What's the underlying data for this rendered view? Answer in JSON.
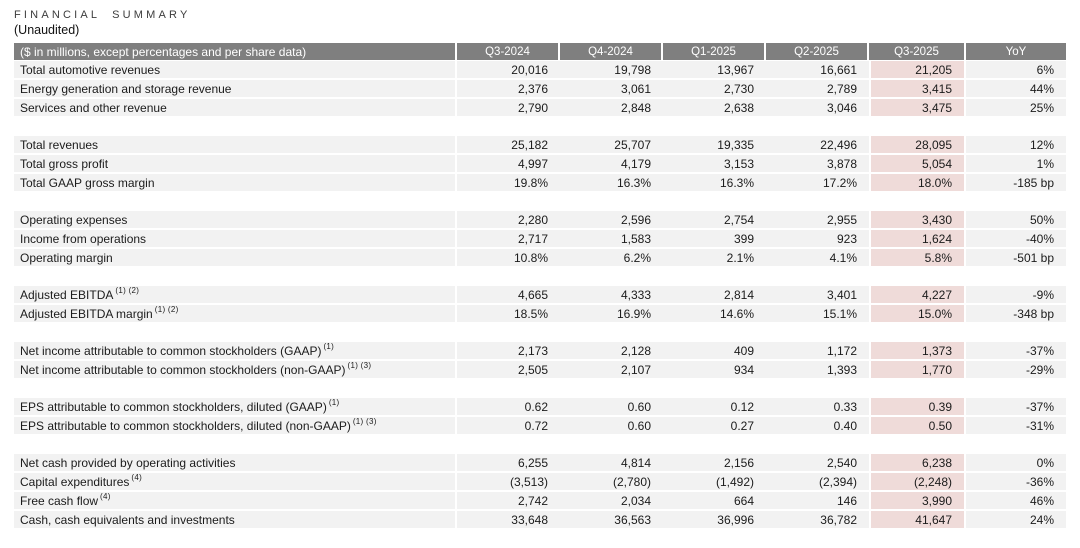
{
  "title": "FINANCIAL SUMMARY",
  "subtitle": "(Unaudited)",
  "colors": {
    "header_bg": "#7f7f7f",
    "header_text": "#ffffff",
    "row_bg": "#f2f2f2",
    "highlight_bg": "#efdbd9",
    "text": "#1b1b1b"
  },
  "table": {
    "label_header": "($ in millions, except percentages and per share data)",
    "columns": [
      "Q3-2024",
      "Q4-2024",
      "Q1-2025",
      "Q2-2025",
      "Q3-2025",
      "YoY"
    ],
    "highlight_column": "Q3-2025",
    "groups": [
      {
        "rows": [
          {
            "label": "Total automotive revenues",
            "sup": "",
            "values": [
              "20,016",
              "19,798",
              "13,967",
              "16,661",
              "21,205",
              "6%"
            ]
          },
          {
            "label": "Energy generation and storage revenue",
            "sup": "",
            "values": [
              "2,376",
              "3,061",
              "2,730",
              "2,789",
              "3,415",
              "44%"
            ]
          },
          {
            "label": "Services and other revenue",
            "sup": "",
            "values": [
              "2,790",
              "2,848",
              "2,638",
              "3,046",
              "3,475",
              "25%"
            ]
          }
        ]
      },
      {
        "rows": [
          {
            "label": "Total revenues",
            "sup": "",
            "values": [
              "25,182",
              "25,707",
              "19,335",
              "22,496",
              "28,095",
              "12%"
            ]
          },
          {
            "label": "Total gross profit",
            "sup": "",
            "values": [
              "4,997",
              "4,179",
              "3,153",
              "3,878",
              "5,054",
              "1%"
            ]
          },
          {
            "label": "Total GAAP gross margin",
            "sup": "",
            "values": [
              "19.8%",
              "16.3%",
              "16.3%",
              "17.2%",
              "18.0%",
              "-185 bp"
            ]
          }
        ]
      },
      {
        "rows": [
          {
            "label": "Operating expenses",
            "sup": "",
            "values": [
              "2,280",
              "2,596",
              "2,754",
              "2,955",
              "3,430",
              "50%"
            ]
          },
          {
            "label": "Income from operations",
            "sup": "",
            "values": [
              "2,717",
              "1,583",
              "399",
              "923",
              "1,624",
              "-40%"
            ]
          },
          {
            "label": "Operating margin",
            "sup": "",
            "values": [
              "10.8%",
              "6.2%",
              "2.1%",
              "4.1%",
              "5.8%",
              "-501 bp"
            ]
          }
        ]
      },
      {
        "rows": [
          {
            "label": "Adjusted EBITDA",
            "sup": "(1) (2)",
            "values": [
              "4,665",
              "4,333",
              "2,814",
              "3,401",
              "4,227",
              "-9%"
            ]
          },
          {
            "label": "Adjusted EBITDA margin",
            "sup": "(1) (2)",
            "values": [
              "18.5%",
              "16.9%",
              "14.6%",
              "15.1%",
              "15.0%",
              "-348 bp"
            ]
          }
        ]
      },
      {
        "rows": [
          {
            "label": "Net income attributable to common stockholders (GAAP)",
            "sup": "(1)",
            "values": [
              "2,173",
              "2,128",
              "409",
              "1,172",
              "1,373",
              "-37%"
            ]
          },
          {
            "label": "Net income attributable to common stockholders (non-GAAP)",
            "sup": "(1) (3)",
            "values": [
              "2,505",
              "2,107",
              "934",
              "1,393",
              "1,770",
              "-29%"
            ]
          }
        ]
      },
      {
        "rows": [
          {
            "label": "EPS attributable to common stockholders, diluted (GAAP)",
            "sup": "(1)",
            "values": [
              "0.62",
              "0.60",
              "0.12",
              "0.33",
              "0.39",
              "-37%"
            ]
          },
          {
            "label": "EPS attributable to common stockholders, diluted (non-GAAP)",
            "sup": "(1) (3)",
            "values": [
              "0.72",
              "0.60",
              "0.27",
              "0.40",
              "0.50",
              "-31%"
            ]
          }
        ]
      },
      {
        "rows": [
          {
            "label": "Net cash provided by operating activities",
            "sup": "",
            "values": [
              "6,255",
              "4,814",
              "2,156",
              "2,540",
              "6,238",
              "0%"
            ]
          },
          {
            "label": "Capital expenditures",
            "sup": "(4)",
            "values": [
              "(3,513)",
              "(2,780)",
              "(1,492)",
              "(2,394)",
              "(2,248)",
              "-36%"
            ]
          },
          {
            "label": "Free cash flow",
            "sup": "(4)",
            "values": [
              "2,742",
              "2,034",
              "664",
              "146",
              "3,990",
              "46%"
            ]
          },
          {
            "label": "Cash, cash equivalents and investments",
            "sup": "",
            "values": [
              "33,648",
              "36,563",
              "36,996",
              "36,782",
              "41,647",
              "24%"
            ]
          }
        ]
      }
    ]
  }
}
